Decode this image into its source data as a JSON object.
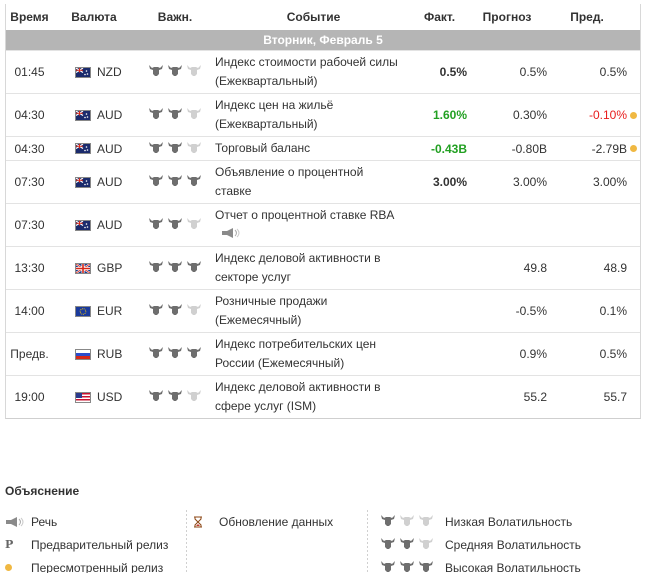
{
  "header": {
    "time": "Время",
    "currency": "Валюта",
    "importance": "Важн.",
    "event": "Событие",
    "actual": "Факт.",
    "forecast": "Прогноз",
    "previous": "Пред."
  },
  "day_label": "Вторник, Февраль 5",
  "colors": {
    "positive": "#22a022",
    "negative": "#e81c1c",
    "revised_dot": "#f0b842",
    "day_bar": "#b5b5b5"
  },
  "events": [
    {
      "time": "01:45",
      "currency": "NZD",
      "flag": "nz-flag-icon",
      "volatility": 2,
      "event_l1": "Индекс стоимости рабочей силы",
      "event_l2": "(Ежеквартальный)",
      "actual": "0.5%",
      "actual_status": "neutral",
      "forecast": "0.5%",
      "previous": "0.5%",
      "previous_status": "neutral",
      "revised": false
    },
    {
      "time": "04:30",
      "currency": "AUD",
      "flag": "au-flag-icon",
      "volatility": 2,
      "event_l1": "Индекс цен на жильё",
      "event_l2": "(Ежеквартальный)",
      "actual": "1.60%",
      "actual_status": "positive",
      "forecast": "0.30%",
      "previous": "-0.10%",
      "previous_status": "negative",
      "revised": true
    },
    {
      "time": "04:30",
      "currency": "AUD",
      "flag": "au-flag-icon",
      "volatility": 2,
      "event_l1": "Торговый баланс",
      "event_l2": "",
      "actual": "-0.43B",
      "actual_status": "positive",
      "forecast": "-0.80B",
      "previous": "-2.79B",
      "previous_status": "neutral",
      "revised": true
    },
    {
      "time": "07:30",
      "currency": "AUD",
      "flag": "au-flag-icon",
      "volatility": 3,
      "event_l1": "Объявление о процентной",
      "event_l2": "ставке",
      "actual": "3.00%",
      "actual_status": "neutral",
      "forecast": "3.00%",
      "previous": "3.00%",
      "previous_status": "neutral",
      "revised": false
    },
    {
      "time": "07:30",
      "currency": "AUD",
      "flag": "au-flag-icon",
      "volatility": 2,
      "event_l1": "Отчет о процентной ставке RBA",
      "event_l2": "",
      "speech": true,
      "actual": "",
      "actual_status": "neutral",
      "forecast": "",
      "previous": "",
      "previous_status": "neutral",
      "revised": false
    },
    {
      "time": "13:30",
      "currency": "GBP",
      "flag": "gb-flag-icon",
      "volatility": 3,
      "event_l1": "Индекс деловой активности в",
      "event_l2": "секторе услуг",
      "actual": "",
      "actual_status": "neutral",
      "forecast": "49.8",
      "previous": "48.9",
      "previous_status": "neutral",
      "revised": false
    },
    {
      "time": "14:00",
      "currency": "EUR",
      "flag": "eu-flag-icon",
      "volatility": 2,
      "event_l1": "Розничные продажи",
      "event_l2": "(Ежемесячный)",
      "actual": "",
      "actual_status": "neutral",
      "forecast": "-0.5%",
      "previous": "0.1%",
      "previous_status": "neutral",
      "revised": false
    },
    {
      "time": "Предв.",
      "currency": "RUB",
      "flag": "ru-flag-icon",
      "volatility": 3,
      "event_l1": "Индекс потребительских цен",
      "event_l2": "России (Ежемесячный)",
      "actual": "",
      "actual_status": "neutral",
      "forecast": "0.9%",
      "previous": "0.5%",
      "previous_status": "neutral",
      "revised": false
    },
    {
      "time": "19:00",
      "currency": "USD",
      "flag": "us-flag-icon",
      "volatility": 2,
      "event_l1": "Индекс деловой активности в",
      "event_l2": "сфере услуг (ISM)",
      "actual": "",
      "actual_status": "neutral",
      "forecast": "55.2",
      "previous": "55.7",
      "previous_status": "neutral",
      "revised": false
    }
  ],
  "legend": {
    "title": "Объяснение",
    "speech": "Речь",
    "preliminary": "Предварительный релиз",
    "revised": "Пересмотренный релиз",
    "data_update": "Обновление данных",
    "low_vol": "Низкая Волатильность",
    "mid_vol": "Средняя Волатильность",
    "high_vol": "Высокая Волатильность"
  }
}
